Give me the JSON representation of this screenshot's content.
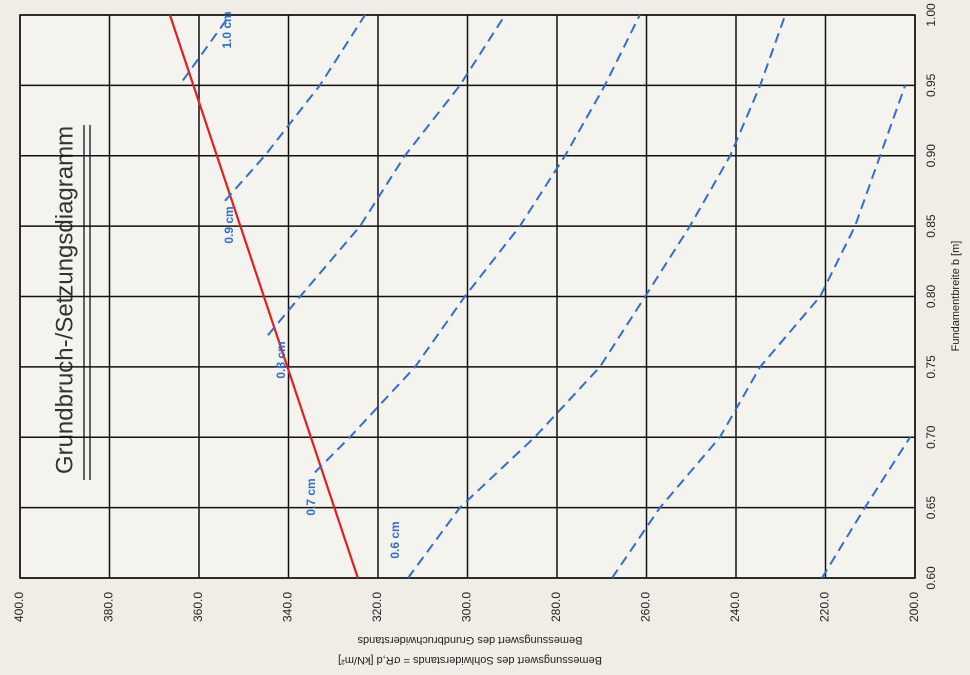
{
  "chart_data": {
    "type": "line",
    "title": "Grundbruch-/Setzungsdiagramm",
    "x_label": "Fundamentbreite b [m]",
    "y_label": "Bemessungswert des Sohlwiderstands = σR,d [kN/m²]",
    "y_label_2": "Bemessungswert des Grundbruchwiderstands",
    "xlim": [
      0.6,
      1.0
    ],
    "xticks": [
      {
        "value": 0.6,
        "label": "0.60"
      },
      {
        "value": 0.65,
        "label": "0.65"
      },
      {
        "value": 0.7,
        "label": "0.70"
      },
      {
        "value": 0.75,
        "label": "0.75"
      },
      {
        "value": 0.8,
        "label": "0.80"
      },
      {
        "value": 0.85,
        "label": "0.85"
      },
      {
        "value": 0.9,
        "label": "0.90"
      },
      {
        "value": 0.95,
        "label": "0.95"
      },
      {
        "value": 1.0,
        "label": "1.00"
      }
    ],
    "ylim": [
      400,
      200
    ],
    "yticks": [
      {
        "value": 400,
        "label": "400.0"
      },
      {
        "value": 380,
        "label": "380.0"
      },
      {
        "value": 360,
        "label": "360.0"
      },
      {
        "value": 340,
        "label": "340.0"
      },
      {
        "value": 320,
        "label": "320.0"
      },
      {
        "value": 300,
        "label": "300.0"
      },
      {
        "value": 280,
        "label": "280.0"
      },
      {
        "value": 260,
        "label": "260.0"
      },
      {
        "value": 240,
        "label": "240.0"
      },
      {
        "value": 220,
        "label": "220.0"
      },
      {
        "value": 200,
        "label": "200.0"
      }
    ],
    "grid": true,
    "series": [
      {
        "color": "#e02020",
        "style": "solid",
        "x": [
          0.6,
          1.0
        ],
        "values": [
          324.5,
          366.5
        ]
      },
      {
        "name": "1.0 cm",
        "color": "#2e6fd0",
        "style": "dashed",
        "x": [
          0.9535,
          1.0
        ],
        "values": [
          363.6,
          353.1
        ]
      },
      {
        "name": "0.9 cm",
        "color": "#2e6fd0",
        "style": "dashed",
        "x": [
          0.868,
          0.9,
          0.95,
          1.0
        ],
        "values": [
          354.2,
          345.3,
          333.0,
          322.9
        ]
      },
      {
        "name": "0.8 cm",
        "color": "#2e6fd0",
        "style": "dashed",
        "x": [
          0.7725,
          0.8,
          0.85,
          0.9,
          0.95,
          1.0
        ],
        "values": [
          344.6,
          337.4,
          324.0,
          314.0,
          301.7,
          291.6
        ]
      },
      {
        "name": "0.7 cm",
        "color": "#2e6fd0",
        "style": "dashed",
        "x": [
          0.675,
          0.7,
          0.75,
          0.8,
          0.85,
          0.9,
          0.95,
          1.0
        ],
        "values": [
          334.1,
          326.3,
          311.7,
          300.6,
          288.3,
          278.2,
          269.3,
          261.5
        ]
      },
      {
        "name": "0.6 cm",
        "color": "#2e6fd0",
        "style": "dashed",
        "x": [
          0.6,
          0.65,
          0.7,
          0.75,
          0.8,
          0.85,
          0.9,
          0.95,
          1.0
        ],
        "values": [
          313.3,
          301.7,
          285.0,
          270.4,
          260.3,
          250.3,
          241.3,
          234.6,
          229.0
        ]
      },
      {
        "color": "#2e6fd0",
        "style": "dashed",
        "x": [
          0.6,
          0.65,
          0.7,
          0.75,
          0.8,
          0.85,
          0.9,
          0.95
        ],
        "values": [
          267.7,
          257.0,
          243.6,
          234.6,
          221.2,
          213.4,
          207.8,
          202.2
        ]
      },
      {
        "color": "#2e6fd0",
        "style": "dashed",
        "x": [
          0.6,
          0.65,
          0.7
        ],
        "values": [
          220.8,
          211.2,
          201.1
        ]
      }
    ]
  }
}
